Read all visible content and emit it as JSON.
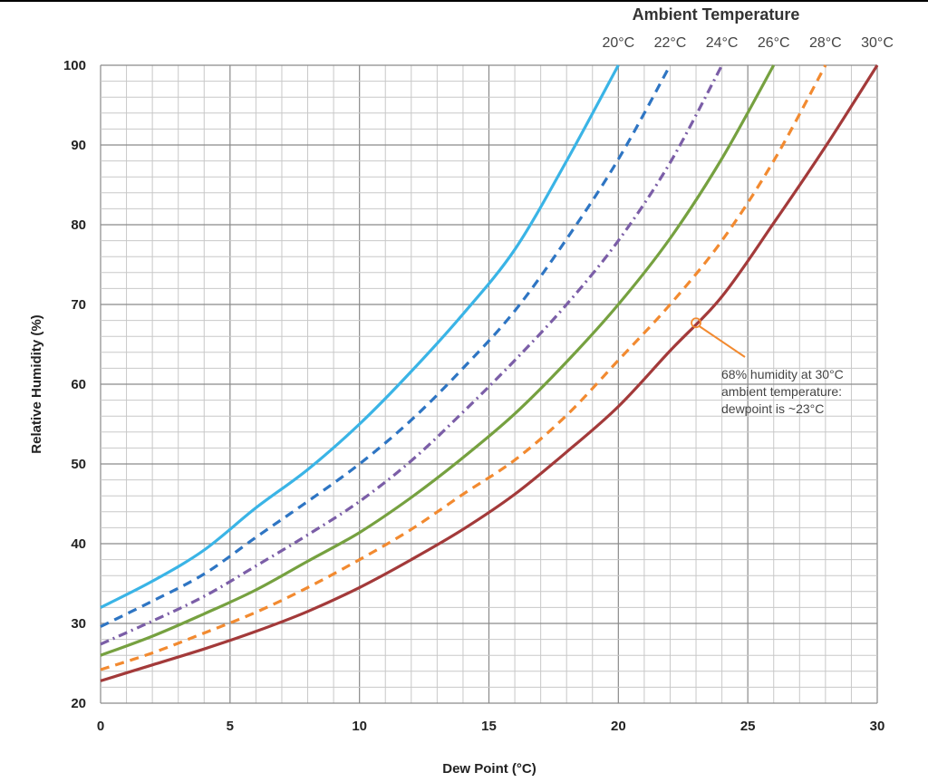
{
  "chart_data": {
    "type": "line",
    "title": "",
    "xlabel": "Dew Point (°C)",
    "ylabel": "Relative Humidity (%)",
    "xlim": [
      0,
      30
    ],
    "ylim": [
      20,
      100
    ],
    "x_ticks": [
      "0",
      "5",
      "10",
      "15",
      "20",
      "25",
      "30"
    ],
    "y_ticks": [
      "20",
      "30",
      "40",
      "50",
      "60",
      "70",
      "80",
      "90",
      "100"
    ],
    "grid": true,
    "legend_title": "Ambient Temperature",
    "legend_position": "top",
    "series": [
      {
        "name": "20°C",
        "ambient": 20,
        "color": "#3ab4e6",
        "dash": "solid",
        "x": [
          0,
          2,
          4,
          6,
          8,
          10,
          12,
          14,
          16,
          18,
          20
        ],
        "y": [
          32.0,
          35.3,
          39.2,
          44.5,
          49.3,
          55.0,
          61.6,
          68.8,
          76.9,
          88.0,
          100.0
        ]
      },
      {
        "name": "22°C",
        "ambient": 22,
        "color": "#2e75c3",
        "dash": "dashed",
        "x": [
          0,
          2,
          4,
          6,
          8,
          10,
          12,
          14,
          16,
          18,
          20,
          22
        ],
        "y": [
          29.6,
          32.8,
          36.2,
          40.8,
          45.3,
          50.0,
          55.5,
          62.0,
          69.2,
          78.2,
          88.2,
          100.0
        ]
      },
      {
        "name": "24°C",
        "ambient": 24,
        "color": "#7b5ea7",
        "dash": "dashdot",
        "x": [
          0,
          2,
          4,
          6,
          8,
          10,
          12,
          14,
          16,
          18,
          20,
          22,
          24
        ],
        "y": [
          27.4,
          30.3,
          33.4,
          37.2,
          41.1,
          45.3,
          50.4,
          56.5,
          63.0,
          70.0,
          78.0,
          87.8,
          100.0
        ]
      },
      {
        "name": "26°C",
        "ambient": 26,
        "color": "#76a140",
        "dash": "solid",
        "x": [
          0,
          2,
          4,
          6,
          8,
          10,
          12,
          14,
          16,
          18,
          20,
          22,
          24,
          26
        ],
        "y": [
          26.0,
          28.4,
          31.2,
          34.2,
          37.8,
          41.4,
          45.8,
          50.8,
          56.3,
          62.8,
          70.0,
          78.3,
          88.3,
          100.0
        ]
      },
      {
        "name": "28°C",
        "ambient": 28,
        "color": "#f28a30",
        "dash": "dashed",
        "x": [
          0,
          2,
          4,
          6,
          8,
          10,
          12,
          14,
          16,
          18,
          20,
          22,
          24,
          26,
          28
        ],
        "y": [
          24.2,
          26.3,
          28.8,
          31.4,
          34.5,
          38.0,
          41.8,
          46.2,
          50.5,
          56.1,
          63.0,
          70.0,
          78.0,
          88.0,
          100.0
        ]
      },
      {
        "name": "30°C",
        "ambient": 30,
        "color": "#a33a3a",
        "dash": "solid",
        "x": [
          0,
          2,
          4,
          6,
          8,
          10,
          12,
          14,
          16,
          18,
          20,
          22,
          24,
          26,
          28,
          30
        ],
        "y": [
          22.8,
          24.8,
          26.8,
          29.0,
          31.5,
          34.5,
          38.0,
          41.8,
          46.2,
          51.5,
          57.2,
          64.2,
          71.0,
          80.2,
          89.8,
          100.0
        ]
      }
    ],
    "annotation": {
      "point": {
        "x": 23,
        "y": 67.7
      },
      "color": "#f28a30",
      "lines": [
        "68% humidity at 30°C",
        "ambient temperature:",
        "dewpoint is ~23°C"
      ]
    }
  }
}
